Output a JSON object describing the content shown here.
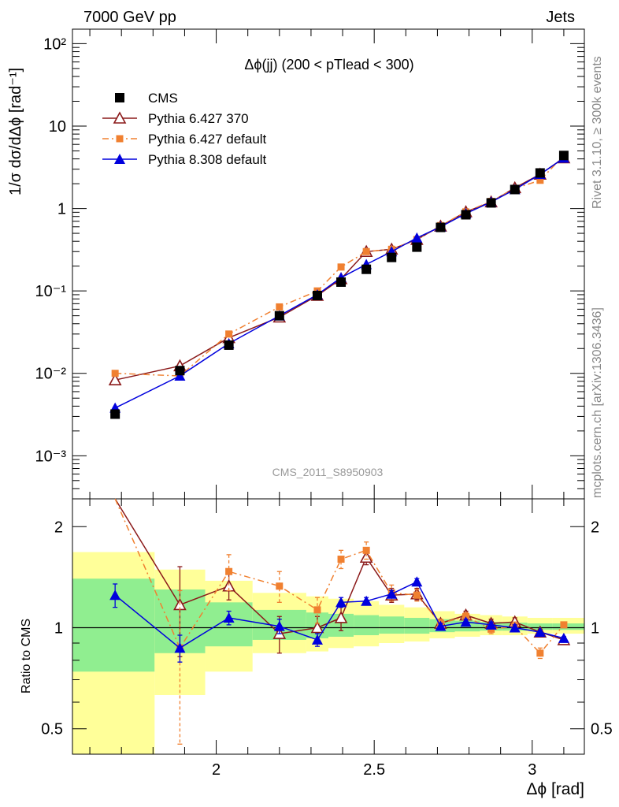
{
  "header": {
    "left": "7000 GeV pp",
    "right": "Jets"
  },
  "side_labels": {
    "rivet": "Rivet 3.1.10, ≥ 300k events",
    "mcplots": "mcplots.cern.ch [arXiv:1306.3436]"
  },
  "watermark": "CMS_2011_S8950903",
  "chart_data": {
    "type": "scatter",
    "title": "Δϕ(jj) (200 < pTlead <  300)",
    "xlabel": "Δϕ [rad]",
    "ylabel": "1/σ dσ/dΔϕ [rad⁻¹]",
    "ratio_ylabel": "Ratio to CMS",
    "x": [
      1.68,
      1.885,
      2.04,
      2.2,
      2.32,
      2.395,
      2.475,
      2.555,
      2.635,
      2.71,
      2.79,
      2.87,
      2.945,
      3.025,
      3.1
    ],
    "xlim": [
      1.545,
      3.165
    ],
    "ylim": [
      0.0003,
      150
    ],
    "ratio_ylim": [
      0.42,
      2.42
    ],
    "x_ticks": [
      "2",
      "2.5",
      "3"
    ],
    "y_ticks": [
      "10⁻³",
      "10⁻²",
      "10⁻¹",
      "1",
      "10",
      "10²"
    ],
    "ratio_ticks": [
      "0.5",
      "1",
      "2"
    ],
    "legend": [
      "CMS",
      "Pythia 6.427 370",
      "Pythia 6.427 default",
      "Pythia 8.308 default"
    ],
    "series": [
      {
        "name": "CMS",
        "color": "#000000",
        "marker": "square",
        "values": [
          0.0032,
          0.0108,
          0.022,
          0.05,
          0.088,
          0.128,
          0.183,
          0.255,
          0.34,
          0.59,
          0.84,
          1.17,
          1.7,
          2.7,
          4.4
        ]
      },
      {
        "name": "Pythia 6.427 370",
        "color": "#8b1a1a",
        "marker": "triangle-open",
        "values": [
          0.0083,
          0.0123,
          0.027,
          0.048,
          0.088,
          0.14,
          0.3,
          0.32,
          0.42,
          0.61,
          0.91,
          1.2,
          1.78,
          2.6,
          4.1
        ],
        "ratio": [
          2.55,
          1.17,
          1.33,
          0.96,
          1.0,
          1.07,
          1.62,
          1.25,
          1.26,
          1.03,
          1.09,
          1.03,
          1.04,
          0.97,
          0.92
        ],
        "ratio_err": [
          0.0,
          0.35,
          0.12,
          0.12,
          0.08,
          0.09,
          0.08,
          0.06,
          0.05,
          0.03,
          0.03,
          0.03,
          0.03,
          0.02,
          0.02
        ]
      },
      {
        "name": "Pythia 6.427 default",
        "color": "#f08030",
        "marker": "square-small",
        "values": [
          0.01,
          0.0093,
          0.03,
          0.064,
          0.1,
          0.195,
          0.3,
          0.32,
          0.42,
          0.62,
          0.91,
          1.22,
          1.75,
          2.2,
          4.4
        ],
        "ratio": [
          3.1,
          0.87,
          1.47,
          1.33,
          1.13,
          1.6,
          1.7,
          1.27,
          1.25,
          1.03,
          1.08,
          0.99,
          1.01,
          0.84,
          1.02
        ],
        "ratio_err": [
          0.0,
          0.42,
          0.18,
          0.14,
          0.1,
          0.1,
          0.1,
          0.07,
          0.05,
          0.03,
          0.03,
          0.03,
          0.03,
          0.03,
          0.02
        ]
      },
      {
        "name": "Pythia 8.308 default",
        "color": "#0000dd",
        "marker": "triangle",
        "values": [
          0.0038,
          0.0093,
          0.023,
          0.05,
          0.09,
          0.145,
          0.21,
          0.3,
          0.44,
          0.6,
          0.87,
          1.2,
          1.7,
          2.6,
          4.1
        ],
        "ratio": [
          1.25,
          0.87,
          1.07,
          1.01,
          0.92,
          1.19,
          1.2,
          1.26,
          1.37,
          1.01,
          1.04,
          1.02,
          1.0,
          0.97,
          0.93
        ],
        "ratio_err": [
          0.1,
          0.08,
          0.05,
          0.05,
          0.04,
          0.04,
          0.03,
          0.03,
          0.03,
          0.02,
          0.02,
          0.02,
          0.02,
          0.01,
          0.01
        ]
      }
    ],
    "uncertainty_bands": {
      "x_edges": [
        1.545,
        1.805,
        1.965,
        2.115,
        2.285,
        2.355,
        2.435,
        2.515,
        2.595,
        2.675,
        2.755,
        2.835,
        2.905,
        2.985,
        3.065,
        3.165
      ],
      "inner": [
        [
          0.74,
          1.4
        ],
        [
          0.84,
          1.3
        ],
        [
          0.88,
          1.19
        ],
        [
          0.92,
          1.13
        ],
        [
          0.93,
          1.11
        ],
        [
          0.94,
          1.1
        ],
        [
          0.95,
          1.09
        ],
        [
          0.96,
          1.08
        ],
        [
          0.96,
          1.07
        ],
        [
          0.97,
          1.06
        ],
        [
          0.975,
          1.05
        ],
        [
          0.98,
          1.04
        ],
        [
          0.98,
          1.035
        ],
        [
          0.985,
          1.03
        ],
        [
          0.985,
          1.03
        ]
      ],
      "outer": [
        [
          0.3,
          1.68
        ],
        [
          0.63,
          1.49
        ],
        [
          0.74,
          1.38
        ],
        [
          0.84,
          1.27
        ],
        [
          0.85,
          1.24
        ],
        [
          0.87,
          1.22
        ],
        [
          0.88,
          1.2
        ],
        [
          0.9,
          1.17
        ],
        [
          0.91,
          1.15
        ],
        [
          0.93,
          1.12
        ],
        [
          0.94,
          1.1
        ],
        [
          0.95,
          1.09
        ],
        [
          0.95,
          1.08
        ],
        [
          0.96,
          1.07
        ],
        [
          0.96,
          1.07
        ]
      ],
      "inner_color": "#90ee90",
      "outer_color": "#ffff99"
    }
  }
}
